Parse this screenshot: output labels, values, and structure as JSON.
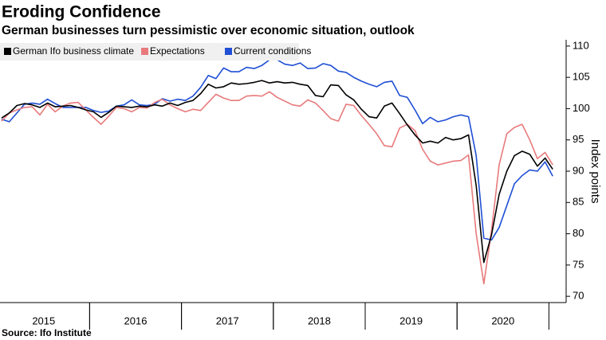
{
  "chart_data": {
    "type": "line",
    "title": "Eroding Confidence",
    "subtitle": "German businesses turn pessimistic over economic situation, outlook",
    "source": "Source: Ifo Institute",
    "y_label": "Index points",
    "categories": [
      null,
      null,
      null,
      null,
      null,
      null,
      null,
      null,
      null,
      null,
      null,
      null,
      null,
      null,
      null,
      null,
      null,
      null,
      null,
      null,
      null,
      null,
      null,
      null,
      null,
      null,
      null,
      null,
      null,
      null,
      null,
      null,
      null,
      null,
      null,
      null,
      null,
      null,
      null,
      null,
      null,
      null,
      null,
      null,
      null,
      null,
      null,
      null,
      null,
      null,
      null,
      null,
      null,
      null,
      null,
      null,
      null,
      null,
      null,
      null,
      null,
      null,
      null,
      null,
      null,
      null,
      null,
      null,
      null,
      null,
      null,
      null,
      null
    ],
    "year_labels": [
      "2015",
      "2016",
      "2017",
      "2018",
      "2019",
      "2020"
    ],
    "ylim": [
      69,
      111
    ],
    "yticks": [
      70,
      75,
      80,
      85,
      90,
      95,
      100,
      105,
      110
    ],
    "grid": false,
    "legend": "top-left",
    "series": [
      {
        "name": "German Ifo business climate",
        "color": "#000000",
        "values": [
          98.5,
          99.3,
          100.5,
          100.8,
          100.6,
          100.2,
          100.9,
          100.3,
          100.4,
          100.5,
          100.2,
          99.8,
          99.5,
          98.6,
          99.4,
          100.4,
          100.3,
          100.2,
          100.4,
          100.3,
          100.6,
          100.4,
          100.9,
          100.5,
          101.0,
          101.3,
          102.4,
          103.9,
          103.3,
          103.5,
          104.1,
          103.9,
          104.0,
          104.2,
          104.5,
          104.1,
          104.3,
          104.1,
          104.2,
          103.9,
          103.7,
          102.1,
          101.9,
          103.8,
          103.7,
          102.2,
          101.4,
          99.9,
          98.7,
          98.5,
          100.4,
          100.9,
          99.2,
          97.4,
          95.8,
          94.5,
          94.8,
          94.5,
          95.4,
          95.0,
          95.2,
          95.8,
          87.7,
          75.4,
          79.8,
          86.3,
          90.0,
          92.5,
          93.2,
          92.7,
          90.8,
          92.1,
          90.3
        ]
      },
      {
        "name": "Expectations",
        "color": "#e87a7c",
        "values": [
          98.0,
          99.3,
          99.8,
          100.2,
          100.3,
          99.0,
          100.7,
          99.5,
          100.4,
          100.9,
          101.0,
          99.8,
          98.6,
          97.5,
          98.8,
          100.2,
          100.0,
          99.5,
          100.2,
          100.1,
          101.0,
          101.5,
          100.6,
          100.0,
          99.5,
          99.9,
          99.7,
          101.0,
          102.3,
          101.7,
          101.3,
          101.3,
          102.0,
          102.1,
          102.0,
          102.7,
          101.8,
          101.2,
          100.6,
          100.4,
          101.4,
          100.9,
          99.7,
          98.4,
          98.0,
          100.7,
          100.5,
          98.9,
          97.5,
          96.0,
          94.1,
          93.9,
          96.9,
          97.5,
          96.5,
          93.5,
          91.6,
          91.0,
          91.3,
          91.6,
          91.7,
          92.6,
          80.0,
          72.0,
          80.5,
          91.0,
          96.0,
          97.0,
          97.5,
          95.0,
          92.0,
          93.0,
          91.0
        ]
      },
      {
        "name": "Current conditions",
        "color": "#1f4fd4",
        "values": [
          98.3,
          97.9,
          99.3,
          100.7,
          100.9,
          100.7,
          101.5,
          100.8,
          100.2,
          100.2,
          100.2,
          100.2,
          99.7,
          99.4,
          99.6,
          100.4,
          100.6,
          101.4,
          100.6,
          100.5,
          100.7,
          101.6,
          101.2,
          101.5,
          101.3,
          102.0,
          103.4,
          105.3,
          104.8,
          106.5,
          105.9,
          105.9,
          106.6,
          106.4,
          106.9,
          107.8,
          107.8,
          107.1,
          106.9,
          107.3,
          106.4,
          106.5,
          107.2,
          106.9,
          106.0,
          105.8,
          105.0,
          104.4,
          103.9,
          103.5,
          104.2,
          104.4,
          102.1,
          101.8,
          99.8,
          97.6,
          98.6,
          97.9,
          98.2,
          98.7,
          99.0,
          98.7,
          92.5,
          79.3,
          79.0,
          81.0,
          84.5,
          88.0,
          89.3,
          90.2,
          90.0,
          91.5,
          89.2
        ]
      }
    ]
  }
}
